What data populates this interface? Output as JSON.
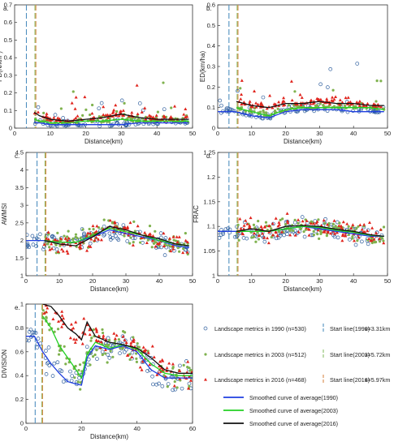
{
  "chart_data": [
    {
      "panel": "a.",
      "type": "scatter",
      "xlabel": "Distance(km)",
      "ylabel": "PD(N/km²)",
      "xlim": [
        0,
        50
      ],
      "ylim": [
        0,
        0.7
      ],
      "xticks": [
        "0",
        "10",
        "20",
        "30",
        "40",
        "50"
      ],
      "yticks": [
        "0",
        "0.1",
        "0.2",
        "0.3",
        "0.4",
        "0.5",
        "0.6",
        "0.7"
      ],
      "series": [
        {
          "name": "Smoothed curve of average(1990)",
          "x": [
            5.5,
            7,
            10,
            15,
            20,
            25,
            30,
            35,
            40,
            45,
            49
          ],
          "values": [
            0.03,
            0.03,
            0.02,
            0.02,
            0.02,
            0.02,
            0.02,
            0.03,
            0.03,
            0.03,
            0.03
          ]
        },
        {
          "name": "Smoothed curve of average(2003)",
          "x": [
            5.5,
            7,
            10,
            15,
            20,
            25,
            30,
            35,
            40,
            45,
            49
          ],
          "values": [
            0.05,
            0.04,
            0.03,
            0.03,
            0.04,
            0.04,
            0.05,
            0.04,
            0.04,
            0.04,
            0.04
          ]
        },
        {
          "name": "Smoothed curve of average(2016)",
          "x": [
            5.5,
            7,
            10,
            15,
            20,
            25,
            30,
            35,
            40,
            45,
            49
          ],
          "values": [
            0.09,
            0.07,
            0.05,
            0.04,
            0.05,
            0.06,
            0.08,
            0.06,
            0.05,
            0.05,
            0.05
          ]
        }
      ]
    },
    {
      "panel": "b.",
      "type": "scatter",
      "xlabel": "Distance(km)",
      "ylabel": "ED(km/ha)",
      "xlim": [
        0,
        50
      ],
      "ylim": [
        0,
        0.6
      ],
      "xticks": [
        "0",
        "10",
        "20",
        "30",
        "40",
        "50"
      ],
      "yticks": [
        "0",
        "0.1",
        "0.2",
        "0.3",
        "0.4",
        "0.5",
        "0.6"
      ],
      "series": [
        {
          "name": "Smoothed curve of average(1990)",
          "x": [
            0,
            5,
            10,
            15,
            20,
            25,
            30,
            35,
            40,
            45,
            49
          ],
          "values": [
            0.08,
            0.08,
            0.06,
            0.05,
            0.08,
            0.09,
            0.09,
            0.09,
            0.08,
            0.08,
            0.08
          ]
        },
        {
          "name": "Smoothed curve of average(2003)",
          "x": [
            5.5,
            10,
            15,
            20,
            25,
            30,
            35,
            40,
            45,
            49
          ],
          "values": [
            0.1,
            0.08,
            0.06,
            0.09,
            0.1,
            0.1,
            0.1,
            0.1,
            0.1,
            0.09
          ]
        },
        {
          "name": "Smoothed curve of average(2016)",
          "x": [
            5.5,
            10,
            15,
            20,
            25,
            30,
            35,
            40,
            45,
            49
          ],
          "values": [
            0.13,
            0.11,
            0.1,
            0.12,
            0.12,
            0.13,
            0.12,
            0.12,
            0.11,
            0.11
          ]
        }
      ]
    },
    {
      "panel": "c.",
      "type": "scatter",
      "xlabel": "Distance(km)",
      "ylabel": "AWMSI",
      "xlim": [
        0,
        50
      ],
      "ylim": [
        1,
        4.5
      ],
      "xticks": [
        "0",
        "10",
        "20",
        "30",
        "40",
        "50"
      ],
      "yticks": [
        "1",
        "1.5",
        "2",
        "2.5",
        "3",
        "3.5",
        "4",
        "4.5"
      ],
      "series": [
        {
          "name": "Smoothed curve of average(1990)",
          "x": [
            0,
            5,
            10,
            15,
            20,
            25,
            30,
            35,
            40,
            45,
            49
          ],
          "values": [
            2.0,
            2.0,
            1.95,
            1.95,
            2.1,
            2.3,
            2.2,
            2.1,
            2.0,
            1.85,
            1.8
          ]
        },
        {
          "name": "Smoothed curve of average(2003)",
          "x": [
            5.5,
            10,
            15,
            20,
            25,
            30,
            35,
            40,
            45,
            49
          ],
          "values": [
            2.0,
            1.95,
            1.95,
            2.15,
            2.35,
            2.25,
            2.15,
            2.0,
            1.9,
            1.85
          ]
        },
        {
          "name": "Smoothed curve of average(2016)",
          "x": [
            5.5,
            10,
            15,
            20,
            25,
            30,
            35,
            40,
            45,
            49
          ],
          "values": [
            2.0,
            1.9,
            1.85,
            2.1,
            2.4,
            2.3,
            2.15,
            2.05,
            1.9,
            1.85
          ]
        }
      ]
    },
    {
      "panel": "d.",
      "type": "scatter",
      "xlabel": "Distance(km)",
      "ylabel": "FRAC",
      "xlim": [
        0,
        50
      ],
      "ylim": [
        1,
        1.25
      ],
      "xticks": [
        "0",
        "10",
        "20",
        "30",
        "40",
        "50"
      ],
      "yticks": [
        "1",
        "1.05",
        "1.1",
        "1.15",
        "1.2",
        "1.25"
      ],
      "series": [
        {
          "name": "Smoothed curve of average(1990)",
          "x": [
            0,
            5,
            10,
            15,
            20,
            25,
            30,
            35,
            40,
            45,
            49
          ],
          "values": [
            1.09,
            1.09,
            1.09,
            1.09,
            1.095,
            1.1,
            1.095,
            1.09,
            1.085,
            1.08,
            1.08
          ]
        },
        {
          "name": "Smoothed curve of average(2003)",
          "x": [
            5.5,
            10,
            15,
            20,
            25,
            30,
            35,
            40,
            45,
            49
          ],
          "values": [
            1.09,
            1.09,
            1.09,
            1.095,
            1.1,
            1.098,
            1.092,
            1.088,
            1.082,
            1.08
          ]
        },
        {
          "name": "Smoothed curve of average(2016)",
          "x": [
            5.5,
            10,
            15,
            20,
            25,
            30,
            35,
            40,
            45,
            49
          ],
          "values": [
            1.09,
            1.095,
            1.09,
            1.1,
            1.102,
            1.1,
            1.094,
            1.09,
            1.083,
            1.08
          ]
        }
      ]
    },
    {
      "panel": "e.",
      "type": "scatter",
      "xlabel": "Distance(km)",
      "ylabel": "DIVISION",
      "xlim": [
        0,
        60
      ],
      "ylim": [
        0,
        1
      ],
      "xticks": [
        "0",
        "20",
        "40",
        "60"
      ],
      "yticks": [
        "0",
        "0.2",
        "0.4",
        "0.6",
        "0.8",
        "1"
      ],
      "series": [
        {
          "name": "Smoothed curve of average(1990)",
          "x": [
            0,
            3,
            6,
            9,
            12,
            15,
            18,
            20,
            22,
            25,
            30,
            35,
            40,
            45,
            50,
            55,
            60
          ],
          "values": [
            0.73,
            0.73,
            0.6,
            0.5,
            0.42,
            0.35,
            0.33,
            0.32,
            0.55,
            0.65,
            0.62,
            0.65,
            0.6,
            0.45,
            0.38,
            0.38,
            0.38
          ]
        },
        {
          "name": "Smoothed curve of average(2003)",
          "x": [
            6,
            9,
            12,
            15,
            18,
            20,
            22,
            25,
            30,
            35,
            40,
            45,
            50,
            55,
            60
          ],
          "values": [
            0.9,
            0.8,
            0.65,
            0.55,
            0.45,
            0.38,
            0.58,
            0.68,
            0.63,
            0.66,
            0.62,
            0.5,
            0.42,
            0.4,
            0.4
          ]
        },
        {
          "name": "Smoothed curve of average(2016)",
          "x": [
            6,
            9,
            12,
            15,
            18,
            20,
            22,
            25,
            30,
            35,
            40,
            45,
            50,
            55,
            60
          ],
          "values": [
            1.0,
            0.98,
            0.9,
            0.8,
            0.75,
            0.7,
            0.85,
            0.73,
            0.68,
            0.66,
            0.63,
            0.55,
            0.45,
            0.42,
            0.42
          ]
        }
      ]
    }
  ],
  "start_lines": [
    {
      "label": "Start line(1990)",
      "value_label": "x=3.31km",
      "x": 3.31,
      "color": "#4f8fbf"
    },
    {
      "label": "Start line(2003)",
      "value_label": "x=5.72km",
      "x": 5.72,
      "color": "#8bbf6a"
    },
    {
      "label": "Start line(2016)",
      "value_label": "x=5.97km",
      "x": 5.97,
      "color": "#d98a4a"
    }
  ],
  "legend": {
    "points": [
      {
        "label": "Landscape metrics in 1990 (n=530)",
        "marker": "circle",
        "color": "#2f5f9e"
      },
      {
        "label": "Landscape metrics in 2003 (n=512)",
        "marker": "dot",
        "color": "#7fb24e"
      },
      {
        "label": "Landscape metrics in 2016 (n=468)",
        "marker": "triangle",
        "color": "#e0231c"
      }
    ],
    "curves": [
      {
        "label": "Smoothed curve of average(1990)",
        "color": "#1f3fe0"
      },
      {
        "label": "Smoothed curve of average(2003)",
        "color": "#22d022"
      },
      {
        "label": "Smoothed curve of average(2016)",
        "color": "#111111"
      }
    ]
  },
  "colors": {
    "c1990": "#2f5f9e",
    "c2003": "#7fb24e",
    "c2016": "#e0231c",
    "curve1990": "#1f3fe0",
    "curve2003": "#22d022",
    "curve2016": "#111111"
  }
}
